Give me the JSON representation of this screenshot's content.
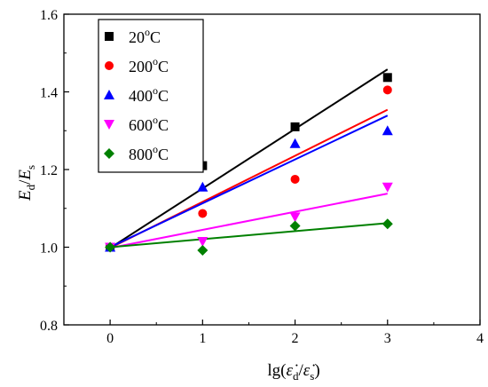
{
  "chart_data": {
    "type": "scatter",
    "title": "",
    "xlabel": "lg(ε̇d/ε̇s)",
    "ylabel": "Ed/Es",
    "xlim": [
      -0.5,
      4
    ],
    "ylim": [
      0.8,
      1.6
    ],
    "x_ticks": [
      0,
      1,
      2,
      3,
      4
    ],
    "y_ticks": [
      0.8,
      1.0,
      1.2,
      1.4,
      1.6
    ],
    "x_tick_labels": [
      "0",
      "1",
      "2",
      "3",
      "4"
    ],
    "y_tick_labels": [
      "0.8",
      "1.0",
      "1.2",
      "1.4",
      "1.6"
    ],
    "grid": false,
    "legend_position": "top-left",
    "series": [
      {
        "name": "20°C",
        "label_main": "20",
        "label_sup": "o",
        "label_unit": "C",
        "marker": "square",
        "color": "#000000",
        "x": [
          0,
          1,
          2,
          3
        ],
        "y": [
          1.0,
          1.21,
          1.31,
          1.437
        ],
        "fit": {
          "x": [
            0,
            3
          ],
          "y": [
            0.998,
            1.458
          ]
        }
      },
      {
        "name": "200°C",
        "label_main": "200",
        "label_sup": "o",
        "label_unit": "C",
        "marker": "circle",
        "color": "#ff0000",
        "x": [
          0,
          1,
          2,
          3
        ],
        "y": [
          1.0,
          1.087,
          1.175,
          1.405
        ],
        "fit": {
          "x": [
            0,
            3
          ],
          "y": [
            0.998,
            1.354
          ]
        }
      },
      {
        "name": "400°C",
        "label_main": "400",
        "label_sup": "o",
        "label_unit": "C",
        "marker": "triangle-up",
        "color": "#0000ff",
        "x": [
          0,
          1,
          2,
          3
        ],
        "y": [
          1.0,
          1.155,
          1.267,
          1.3
        ],
        "fit": {
          "x": [
            0,
            3
          ],
          "y": [
            1.0,
            1.339
          ]
        }
      },
      {
        "name": "600°C",
        "label_main": "600",
        "label_sup": "o",
        "label_unit": "C",
        "marker": "triangle-down",
        "color": "#ff00ff",
        "x": [
          0,
          1,
          2,
          3
        ],
        "y": [
          1.0,
          1.015,
          1.078,
          1.155
        ],
        "fit": {
          "x": [
            0,
            3
          ],
          "y": [
            0.998,
            1.138
          ]
        }
      },
      {
        "name": "800°C",
        "label_main": "800",
        "label_sup": "o",
        "label_unit": "C",
        "marker": "diamond",
        "color": "#008000",
        "x": [
          0,
          1,
          2,
          3
        ],
        "y": [
          1.0,
          0.992,
          1.055,
          1.06
        ],
        "fit": {
          "x": [
            0,
            3
          ],
          "y": [
            1.0,
            1.062
          ]
        }
      }
    ]
  }
}
